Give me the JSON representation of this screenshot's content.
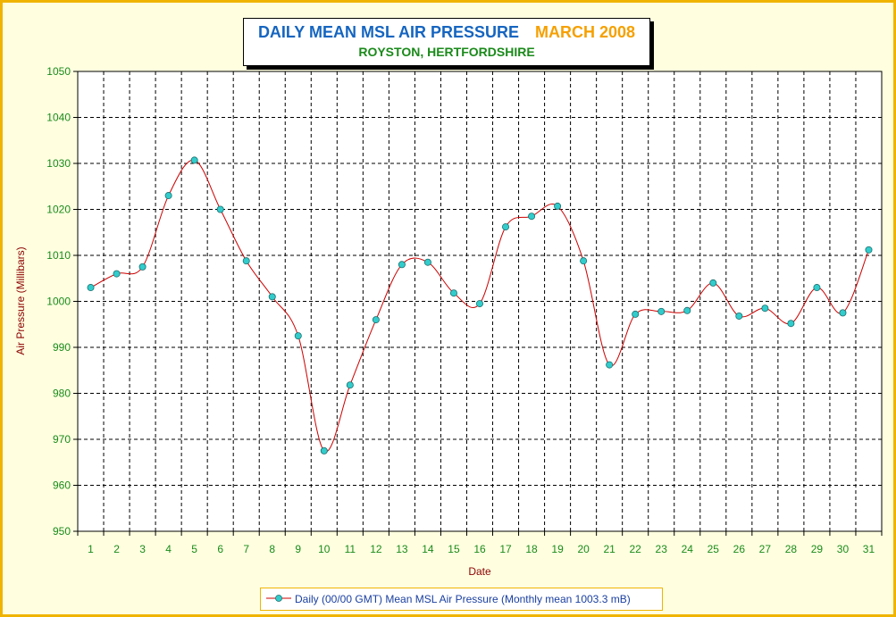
{
  "title": {
    "main": "DAILY MEAN MSL AIR PRESSURE",
    "month": "MARCH 2008",
    "subtitle": "ROYSTON, HERTFORDSHIRE"
  },
  "colors": {
    "title": "#1565c0",
    "month": "#f5a000",
    "subtitle": "#1a8a1a",
    "line": "#cc0000",
    "marker": "#33cccc",
    "tick_labels": "#1a8a1a",
    "axis_titles": "#8b0000",
    "border": "#f0b400",
    "background": "#ffffe0"
  },
  "chart_data": {
    "type": "line",
    "title": "DAILY MEAN MSL AIR PRESSURE MARCH 2008",
    "subtitle": "ROYSTON, HERTFORDSHIRE",
    "xlabel": "Date",
    "ylabel": "Air Pressure (Millibars)",
    "x": [
      1,
      2,
      3,
      4,
      5,
      6,
      7,
      8,
      9,
      10,
      11,
      12,
      13,
      14,
      15,
      16,
      17,
      18,
      19,
      20,
      21,
      22,
      23,
      24,
      25,
      26,
      27,
      28,
      29,
      30,
      31
    ],
    "ylim": [
      950,
      1050
    ],
    "yticks": [
      950,
      960,
      970,
      980,
      990,
      1000,
      1010,
      1020,
      1030,
      1040,
      1050
    ],
    "grid": true,
    "legend_position": "bottom",
    "series": [
      {
        "name": "Daily (00/00 GMT) Mean MSL Air Pressure (Monthly mean 1003.3 mB)",
        "values": [
          1003.0,
          1006.0,
          1007.5,
          1023.0,
          1030.7,
          1020.0,
          1008.8,
          1001.0,
          992.5,
          967.5,
          981.8,
          996.0,
          1008.0,
          1008.5,
          1001.8,
          999.5,
          1016.2,
          1018.5,
          1020.7,
          1008.8,
          986.2,
          997.2,
          997.8,
          998.0,
          1004.0,
          996.8,
          998.5,
          995.2,
          1003.0,
          997.5,
          1011.2
        ]
      }
    ]
  }
}
